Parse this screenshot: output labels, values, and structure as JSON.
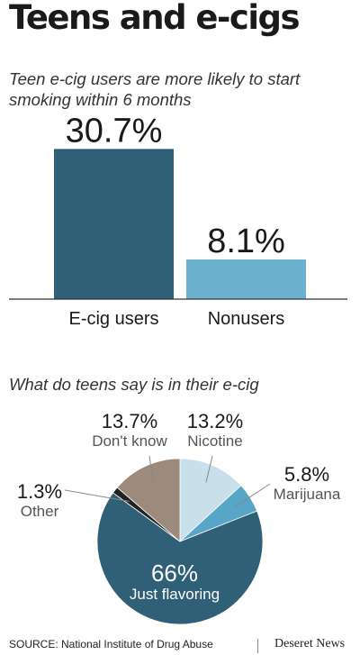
{
  "title": "Teens and e-cigs",
  "colors": {
    "dark": "#2f6078",
    "light": "#6cafce",
    "pale": "#c9dfea",
    "mid": "#57a6c8",
    "tan": "#9c8b7d",
    "black": "#222222"
  },
  "chart_data": [
    {
      "type": "bar",
      "title": "Teen e-cig users are more likely to start smoking within 6 months",
      "categories": [
        "E-cig users",
        "Nonusers"
      ],
      "values": [
        30.7,
        8.1
      ],
      "value_labels": [
        "30.7%",
        "8.1%"
      ],
      "ylim": [
        0,
        35
      ],
      "grid": false
    },
    {
      "type": "pie",
      "title": "What do teens say is in their e-cig",
      "slices": [
        {
          "label": "Nicotine",
          "value": 13.2,
          "value_label": "13.2%"
        },
        {
          "label": "Marijuana",
          "value": 5.8,
          "value_label": "5.8%"
        },
        {
          "label": "Just flavoring",
          "value": 66,
          "value_label": "66%"
        },
        {
          "label": "Other",
          "value": 1.3,
          "value_label": "1.3%"
        },
        {
          "label": "Don't know",
          "value": 13.7,
          "value_label": "13.7%"
        }
      ]
    }
  ],
  "source": "SOURCE: National Institute of Drug Abuse",
  "brand": "Deseret News"
}
